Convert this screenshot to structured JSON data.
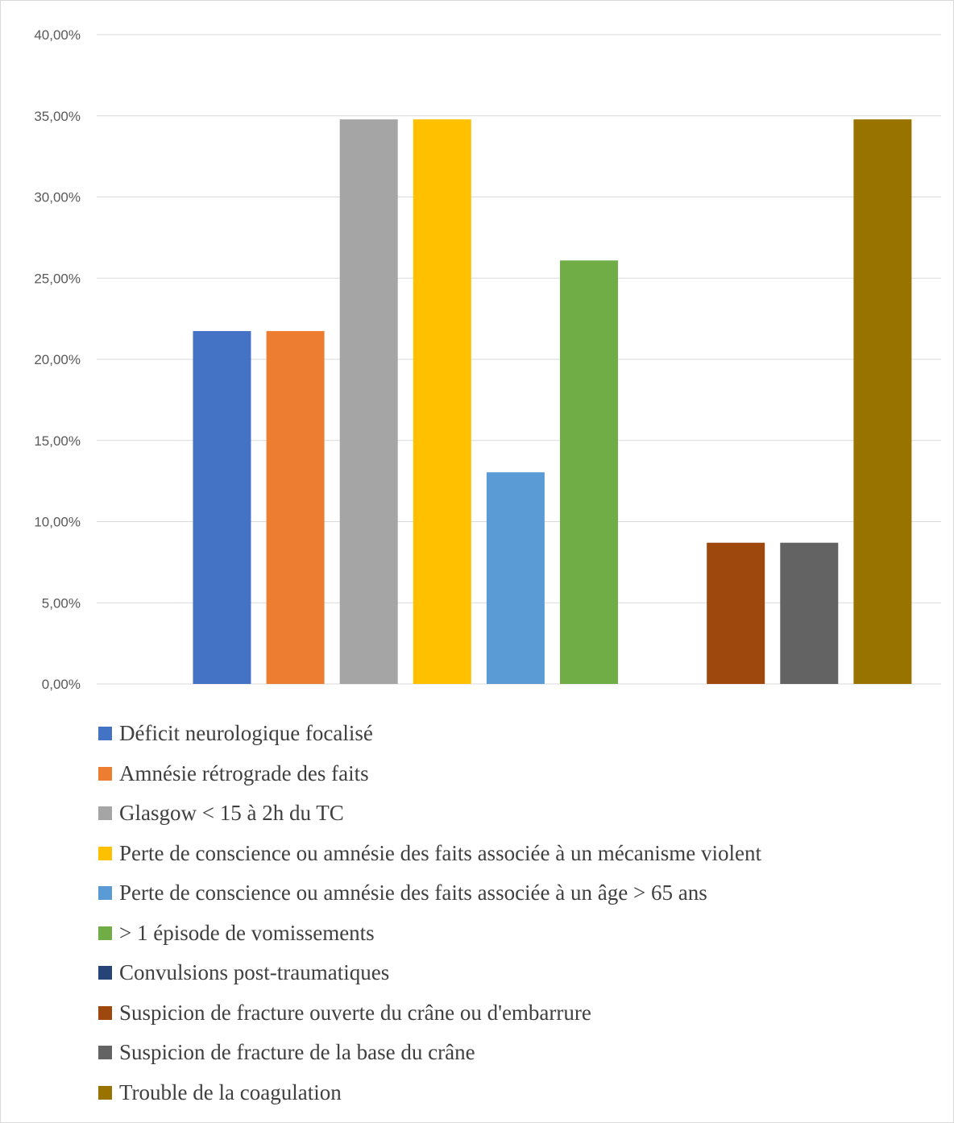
{
  "chart_data": {
    "type": "bar",
    "title": "",
    "xlabel": "",
    "ylabel": "",
    "ylim": [
      0,
      0.4
    ],
    "y_ticks": [
      "0,00%",
      "5,00%",
      "10,00%",
      "15,00%",
      "20,00%",
      "25,00%",
      "30,00%",
      "35,00%",
      "40,00%"
    ],
    "grid": true,
    "legend_position": "bottom",
    "series": [
      {
        "name": "Déficit neurologique focalisé",
        "color": "#4472c4",
        "value": 0.2174
      },
      {
        "name": "Amnésie rétrograde des faits",
        "color": "#ed7d31",
        "value": 0.2174
      },
      {
        "name": "Glasgow < 15 à 2h du TC",
        "color": "#a5a5a5",
        "value": 0.3478
      },
      {
        "name": "Perte de conscience ou amnésie des faits associée à un mécanisme violent",
        "color": "#ffc000",
        "value": 0.3478
      },
      {
        "name": "Perte de conscience ou amnésie des faits associée à un âge > 65 ans",
        "color": "#5b9bd5",
        "value": 0.1304
      },
      {
        "name": "> 1 épisode de vomissements",
        "color": "#70ad47",
        "value": 0.2609
      },
      {
        "name": "Convulsions post-traumatiques",
        "color": "#264478",
        "value": 0
      },
      {
        "name": "Suspicion de fracture ouverte du crâne ou d'embarrure",
        "color": "#9e480e",
        "value": 0.087
      },
      {
        "name": "Suspicion de fracture de la base du crâne",
        "color": "#636363",
        "value": 0.087
      },
      {
        "name": "Trouble de la coagulation",
        "color": "#997300",
        "value": 0.3478
      }
    ]
  }
}
